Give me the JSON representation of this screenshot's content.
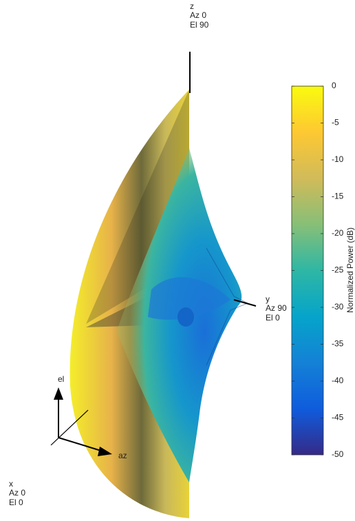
{
  "chart_data": {
    "type": "surface",
    "axis_labels": [
      {
        "name": "z",
        "az": "Az 0",
        "el": "El 90"
      },
      {
        "name": "y",
        "az": "Az 90",
        "el": "El 0"
      },
      {
        "name": "x",
        "az": "Az 0",
        "el": "El 0"
      }
    ],
    "triad": {
      "up": "el",
      "right": "az"
    },
    "colorbar": {
      "label": "Normalized Power (dB)",
      "lim": [
        -50,
        0
      ],
      "ticks": [
        0,
        -5,
        -10,
        -15,
        -20,
        -25,
        -30,
        -35,
        -40,
        -45,
        -50
      ],
      "colors": [
        "#352a87",
        "#0f5cdd",
        "#1481d6",
        "#06a4ca",
        "#2eb7a4",
        "#87bf77",
        "#d1bb59",
        "#fec832",
        "#f9fb0e"
      ]
    }
  }
}
